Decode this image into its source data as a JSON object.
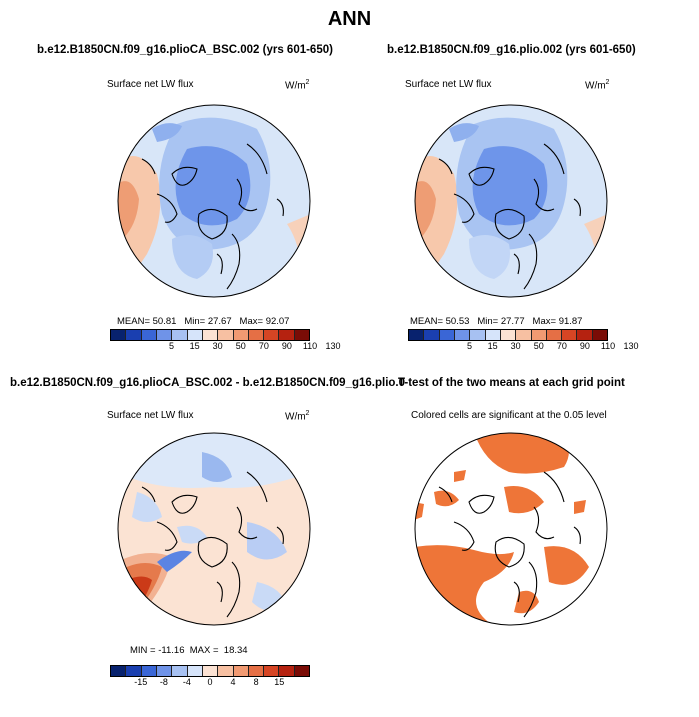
{
  "figure": {
    "title": "ANN"
  },
  "panels": [
    {
      "case": "b.e12.B1850CN.f09_g16.plioCA_BSC.002 (yrs 601-650)",
      "variable": "Surface net LW flux",
      "units": "W/m",
      "units_sup": "2",
      "stats": {
        "mean_label": "MEAN=",
        "mean": "50.81",
        "min_label": "Min=",
        "min": "27.67",
        "max_label": "Max=",
        "max": "92.07"
      },
      "colorbar": {
        "colors": [
          "#08226e",
          "#1a3fb0",
          "#3a66d6",
          "#6f93e8",
          "#a7c1f2",
          "#d6e4fa",
          "#fbe2d3",
          "#f7c0a2",
          "#f19a72",
          "#e56f45",
          "#d64524",
          "#b52210",
          "#7a0c06"
        ],
        "labels": [
          "5",
          "15",
          "30",
          "50",
          "70",
          "90",
          "110",
          "130"
        ]
      }
    },
    {
      "case": "b.e12.B1850CN.f09_g16.plio.002 (yrs 601-650)",
      "variable": "Surface net LW flux",
      "units": "W/m",
      "units_sup": "2",
      "stats": {
        "mean_label": "MEAN=",
        "mean": "50.53",
        "min_label": "Min=",
        "min": "27.77",
        "max_label": "Max=",
        "max": "91.87"
      },
      "colorbar": {
        "colors": [
          "#08226e",
          "#1a3fb0",
          "#3a66d6",
          "#6f93e8",
          "#a7c1f2",
          "#d6e4fa",
          "#fbe2d3",
          "#f7c0a2",
          "#f19a72",
          "#e56f45",
          "#d64524",
          "#b52210",
          "#7a0c06"
        ],
        "labels": [
          "5",
          "15",
          "30",
          "50",
          "70",
          "90",
          "110",
          "130"
        ]
      }
    },
    {
      "case": "b.e12.B1850CN.f09_g16.plioCA_BSC.002 - b.e12.B1850CN.f09_g16.plio.002",
      "variable": "Surface net LW flux",
      "units": "W/m",
      "units_sup": "2",
      "stats_text": "MIN = -11.16  MAX =  18.34",
      "colorbar": {
        "colors": [
          "#08226e",
          "#1a3fb0",
          "#3a66d6",
          "#6f93e8",
          "#a7c1f2",
          "#d6e4fa",
          "#fbe2d3",
          "#f7c0a2",
          "#f19a72",
          "#e56f45",
          "#d64524",
          "#b52210",
          "#7a0c06"
        ],
        "labels": [
          "-15",
          "-8",
          "-4",
          "0",
          "4",
          "8",
          "15"
        ]
      }
    },
    {
      "case": "T-test of the two means at each grid point",
      "note": "Colored cells are significant at the 0.05 level"
    }
  ],
  "colors": {
    "ocean_mean": "#d8e6f8",
    "arctic_low": "#6e95ea",
    "mid_blue": "#a9c4f2",
    "warm": "#f6c3a4",
    "warm_strong": "#ea8a5c",
    "diff_bg": "#fbe3d3",
    "diff_blue": "#b9cdf4",
    "diff_red": "#d8441f",
    "signif": "#ee7538"
  }
}
